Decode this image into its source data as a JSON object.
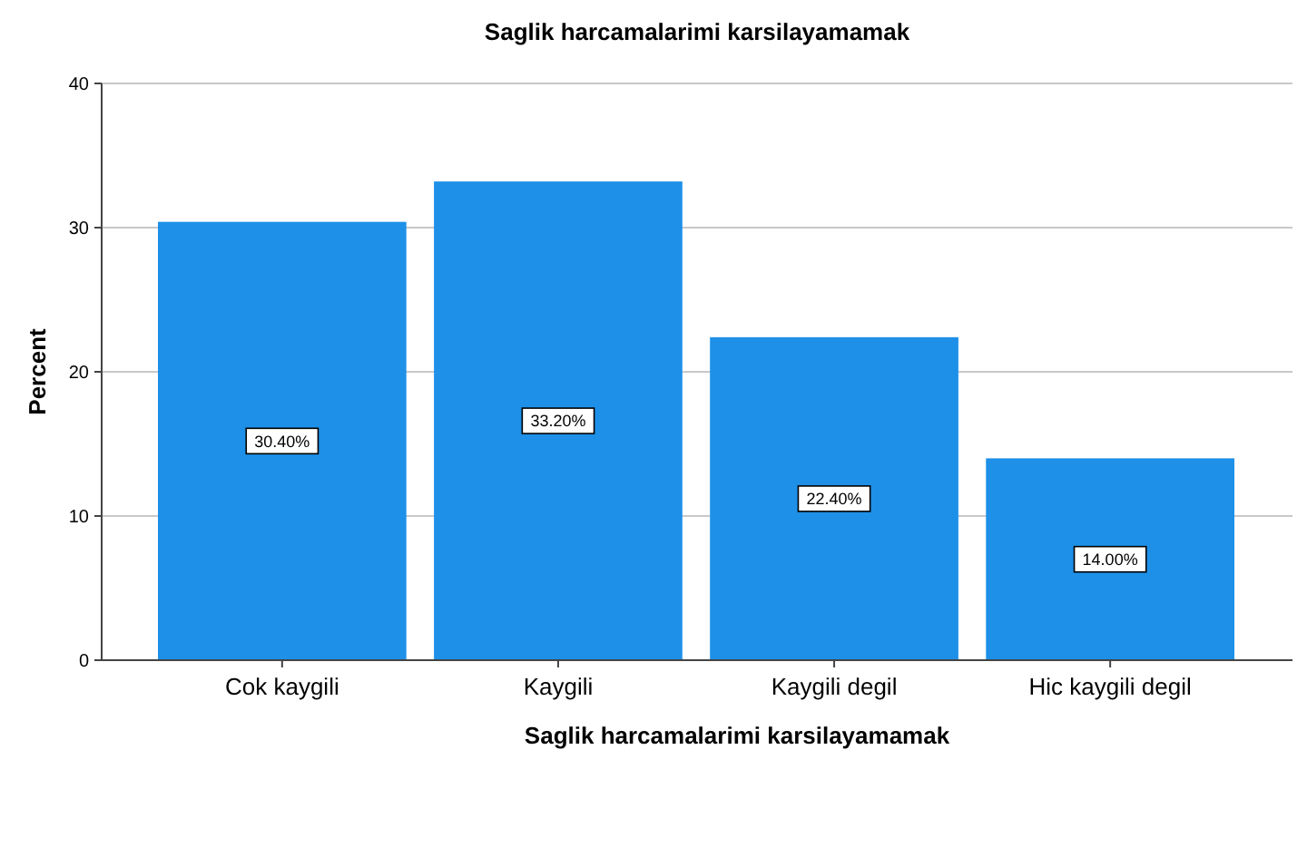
{
  "chart_data": {
    "type": "bar",
    "title": "Saglik harcamalarimi karsilayamamak",
    "xlabel": "Saglik harcamalarimi karsilayamamak",
    "ylabel": "Percent",
    "categories": [
      "Cok kaygili",
      "Kaygili",
      "Kaygili degil",
      "Hic kaygili degil"
    ],
    "values": [
      30.4,
      33.2,
      22.4,
      14.0
    ],
    "value_labels": [
      "30.40%",
      "33.20%",
      "22.40%",
      "14.00%"
    ],
    "color": "#1e90e8",
    "ylim": [
      0,
      40
    ],
    "yticks": [
      0,
      10,
      20,
      30,
      40
    ],
    "grid": "y"
  }
}
